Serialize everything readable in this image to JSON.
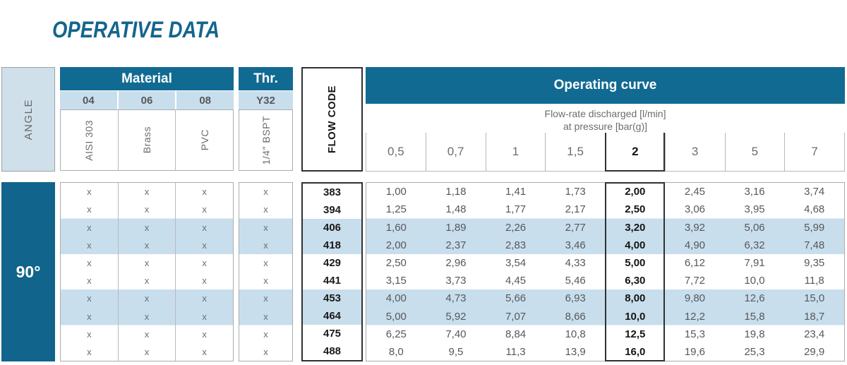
{
  "page_title": "OPERATIVE DATA",
  "colors": {
    "teal_header": "#116A92",
    "teal_angle_cell": "#11648C",
    "light_blue": "#C9DEEC",
    "angle_header_bg": "#CFE0EA",
    "title_text": "#14658D",
    "gray_text": "#6A6D70",
    "dark_text": "#1A1A1A"
  },
  "angle": {
    "header": "ANGLE",
    "value": "90°"
  },
  "material": {
    "header": "Material",
    "columns": [
      {
        "code": "04",
        "name": "AISI 303"
      },
      {
        "code": "06",
        "name": "Brass"
      },
      {
        "code": "08",
        "name": "PVC"
      }
    ]
  },
  "thread": {
    "header": "Thr.",
    "code": "Y32",
    "name": "1/4\" BSPT"
  },
  "flow_code": {
    "header": "FLOW CODE"
  },
  "curve": {
    "header": "Operating curve",
    "subtitle_line1": "Flow-rate discharged [l/min]",
    "subtitle_line2": "at pressure [bar(g)]",
    "pressures": [
      "0,5",
      "0,7",
      "1",
      "1,5",
      "2",
      "3",
      "5",
      "7"
    ],
    "highlighted_pressure_index": 4
  },
  "rows": [
    {
      "code": "383",
      "materials": [
        "x",
        "x",
        "x"
      ],
      "thread": "x",
      "values": [
        "1,00",
        "1,18",
        "1,41",
        "1,73",
        "2,00",
        "2,45",
        "3,16",
        "3,74"
      ]
    },
    {
      "code": "394",
      "materials": [
        "x",
        "x",
        "x"
      ],
      "thread": "x",
      "values": [
        "1,25",
        "1,48",
        "1,77",
        "2,17",
        "2,50",
        "3,06",
        "3,95",
        "4,68"
      ]
    },
    {
      "code": "406",
      "materials": [
        "x",
        "x",
        "x"
      ],
      "thread": "x",
      "values": [
        "1,60",
        "1,89",
        "2,26",
        "2,77",
        "3,20",
        "3,92",
        "5,06",
        "5,99"
      ]
    },
    {
      "code": "418",
      "materials": [
        "x",
        "x",
        "x"
      ],
      "thread": "x",
      "values": [
        "2,00",
        "2,37",
        "2,83",
        "3,46",
        "4,00",
        "4,90",
        "6,32",
        "7,48"
      ]
    },
    {
      "code": "429",
      "materials": [
        "x",
        "x",
        "x"
      ],
      "thread": "x",
      "values": [
        "2,50",
        "2,96",
        "3,54",
        "4,33",
        "5,00",
        "6,12",
        "7,91",
        "9,35"
      ]
    },
    {
      "code": "441",
      "materials": [
        "x",
        "x",
        "x"
      ],
      "thread": "x",
      "values": [
        "3,15",
        "3,73",
        "4,45",
        "5,46",
        "6,30",
        "7,72",
        "10,0",
        "11,8"
      ]
    },
    {
      "code": "453",
      "materials": [
        "x",
        "x",
        "x"
      ],
      "thread": "x",
      "values": [
        "4,00",
        "4,73",
        "5,66",
        "6,93",
        "8,00",
        "9,80",
        "12,6",
        "15,0"
      ]
    },
    {
      "code": "464",
      "materials": [
        "x",
        "x",
        "x"
      ],
      "thread": "x",
      "values": [
        "5,00",
        "5,92",
        "7,07",
        "8,66",
        "10,0",
        "12,2",
        "15,8",
        "18,7"
      ]
    },
    {
      "code": "475",
      "materials": [
        "x",
        "x",
        "x"
      ],
      "thread": "x",
      "values": [
        "6,25",
        "7,40",
        "8,84",
        "10,8",
        "12,5",
        "15,3",
        "19,8",
        "23,4"
      ]
    },
    {
      "code": "488",
      "materials": [
        "x",
        "x",
        "x"
      ],
      "thread": "x",
      "values": [
        "8,0",
        "9,5",
        "11,3",
        "13,9",
        "16,0",
        "19,6",
        "25,3",
        "29,9"
      ]
    }
  ]
}
